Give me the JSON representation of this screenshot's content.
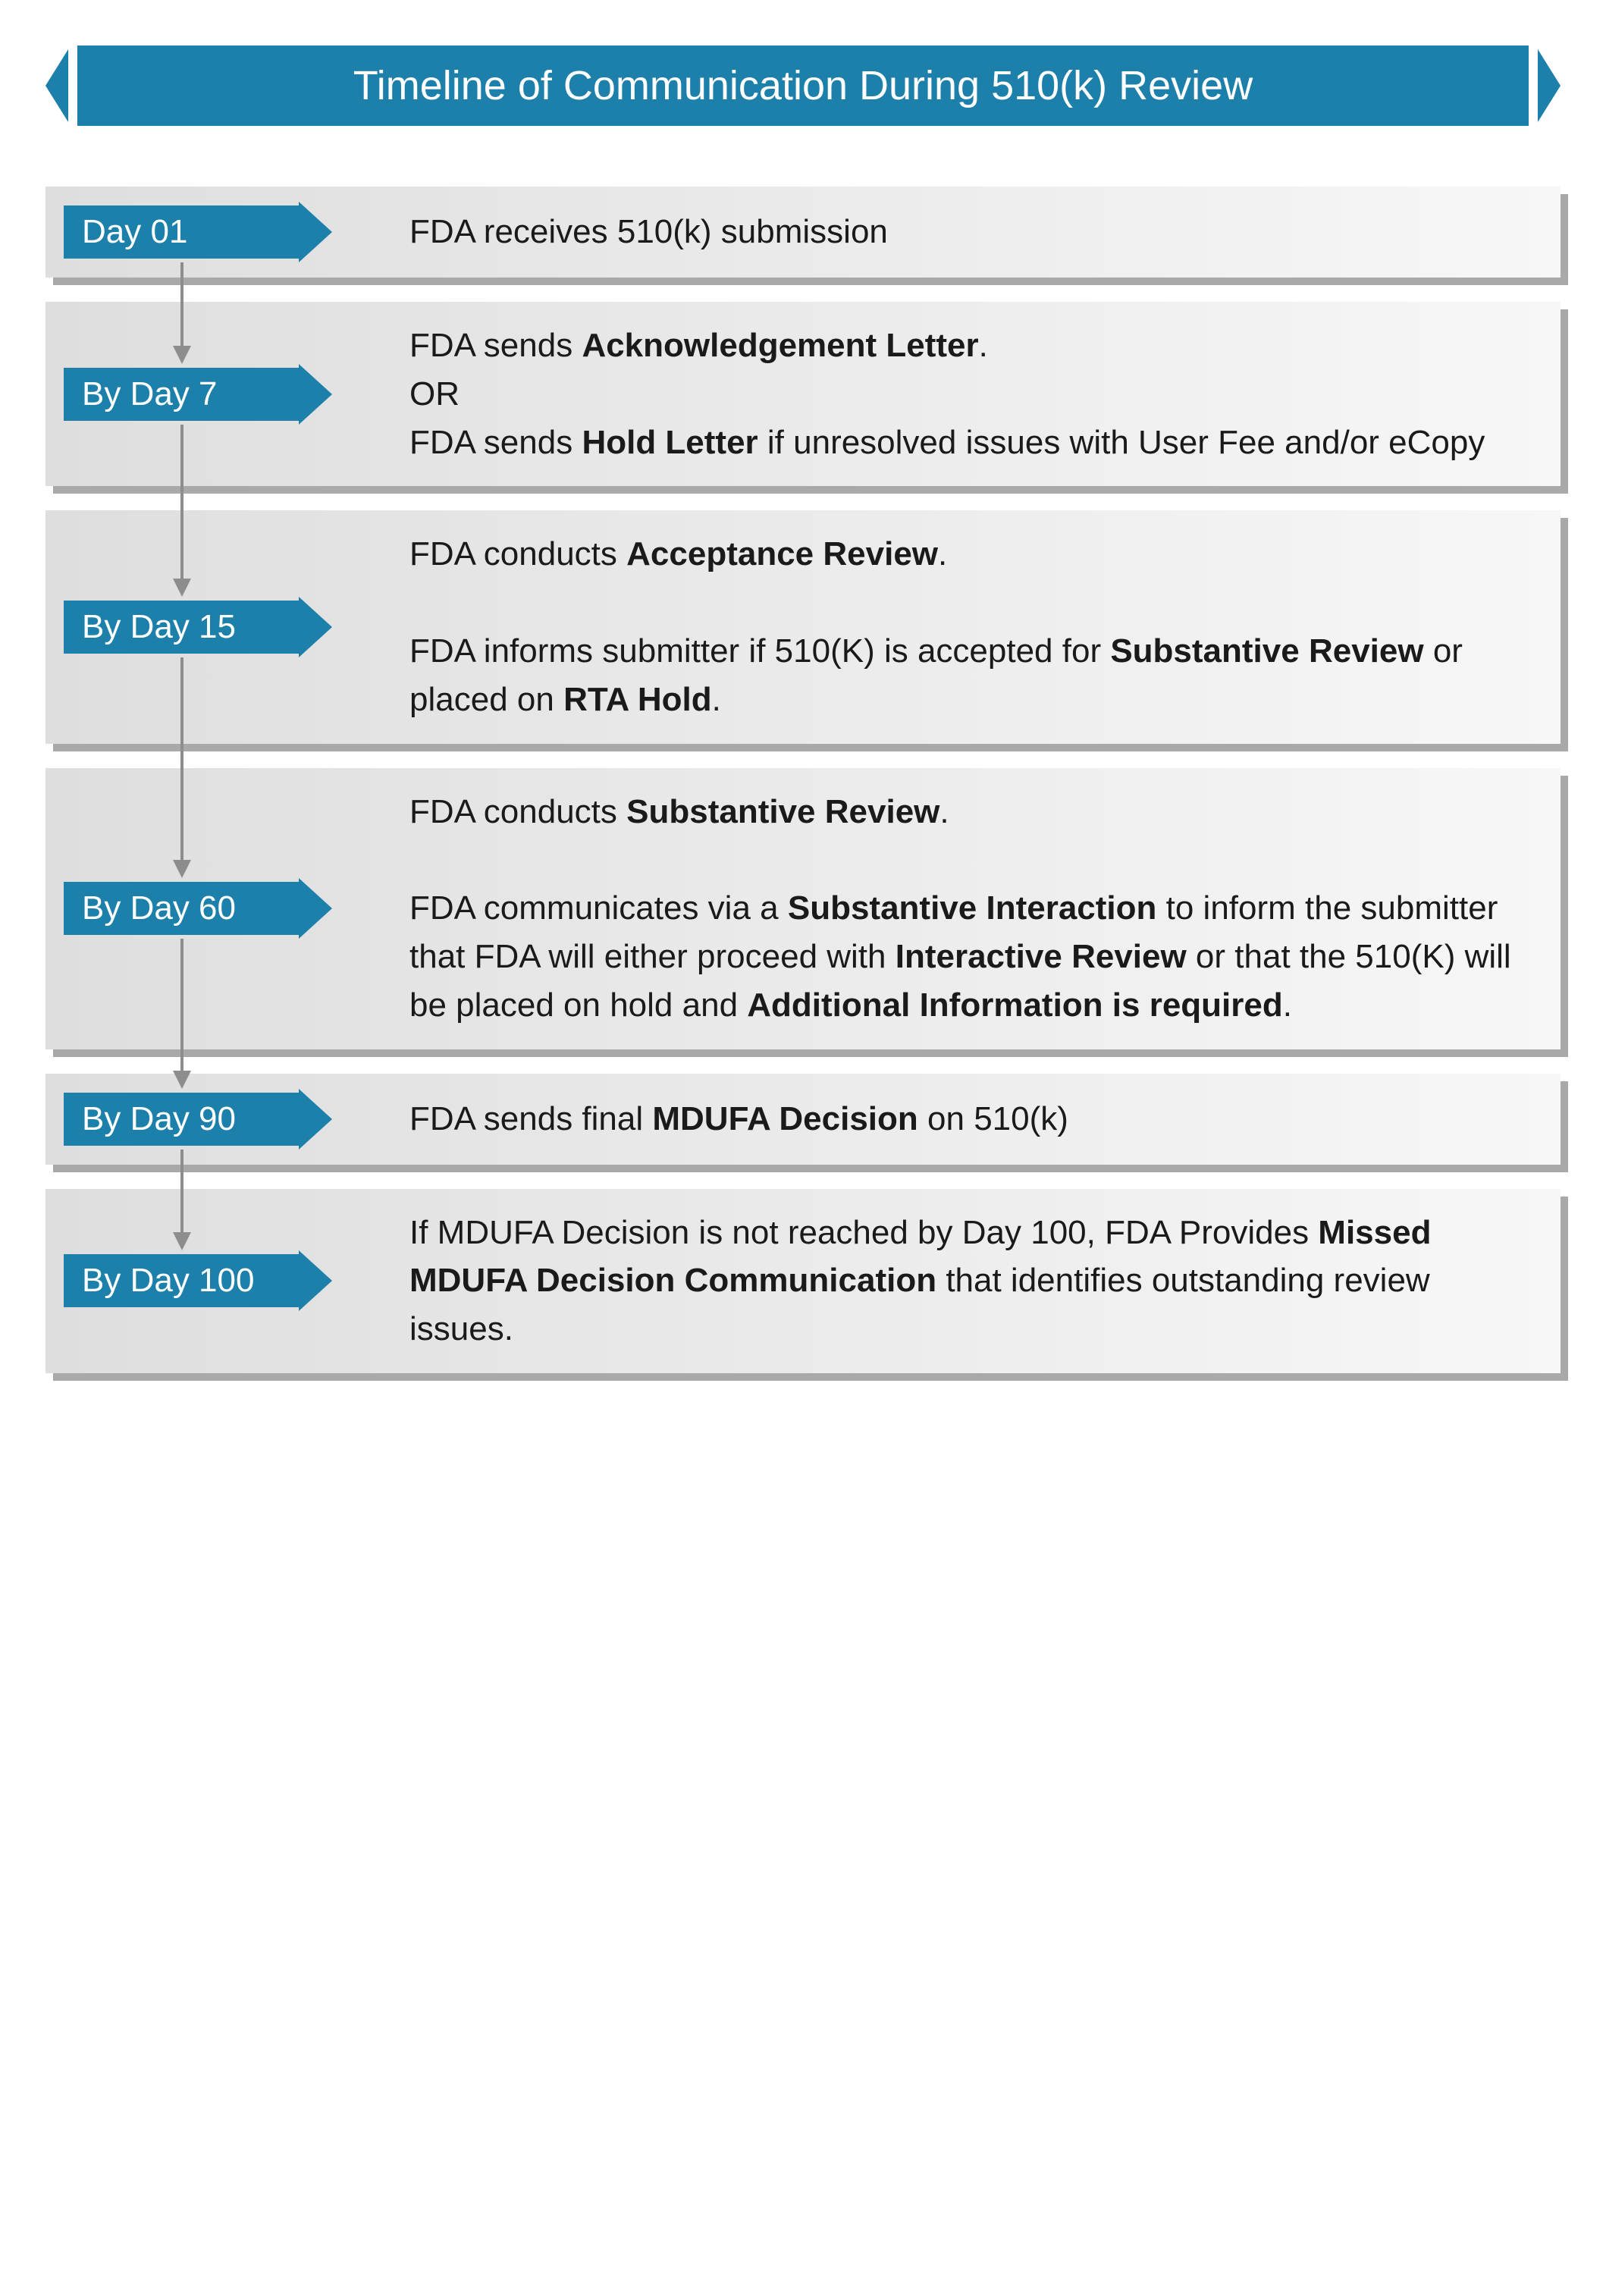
{
  "title": "Timeline of Communication During 510(k) Review",
  "accent_color": "#1c80ab",
  "box_bg_from": "#dedede",
  "box_bg_to": "#f7f7f7",
  "shadow_color": "#a9a9a9",
  "connector_color": "#8d8d8d",
  "steps": [
    {
      "label": "Day 01",
      "html": "FDA receives 510(k) submission"
    },
    {
      "label": "By Day 7",
      "html": "FDA sends <b>Acknowledgement Letter</b>.<br>OR<br>FDA sends <b>Hold Letter</b> if unresolved issues with User Fee and/or eCopy"
    },
    {
      "label": "By Day 15",
      "html": "FDA conducts <b>Acceptance Review</b>.<br><br>FDA informs submitter if 510(K) is accepted for <b>Substantive Review</b> or placed on <b>RTA Hold</b>."
    },
    {
      "label": "By Day 60",
      "html": "FDA conducts <b>Substantive Review</b>.<br><br>FDA communicates via a <b>Substantive Interaction</b> to inform the submitter that FDA will either proceed with <b>Interactive Review</b> or that the 510(K) will be placed on hold and <b>Additional Information is required</b>."
    },
    {
      "label": "By Day 90",
      "html": "FDA sends final <b>MDUFA Decision</b> on 510(k)"
    },
    {
      "label": "By Day 100",
      "html": "If MDUFA Decision is not reached by Day 100, FDA Provides <b>Missed MDUFA Decision Communication</b> that identifies outstanding review issues."
    }
  ]
}
